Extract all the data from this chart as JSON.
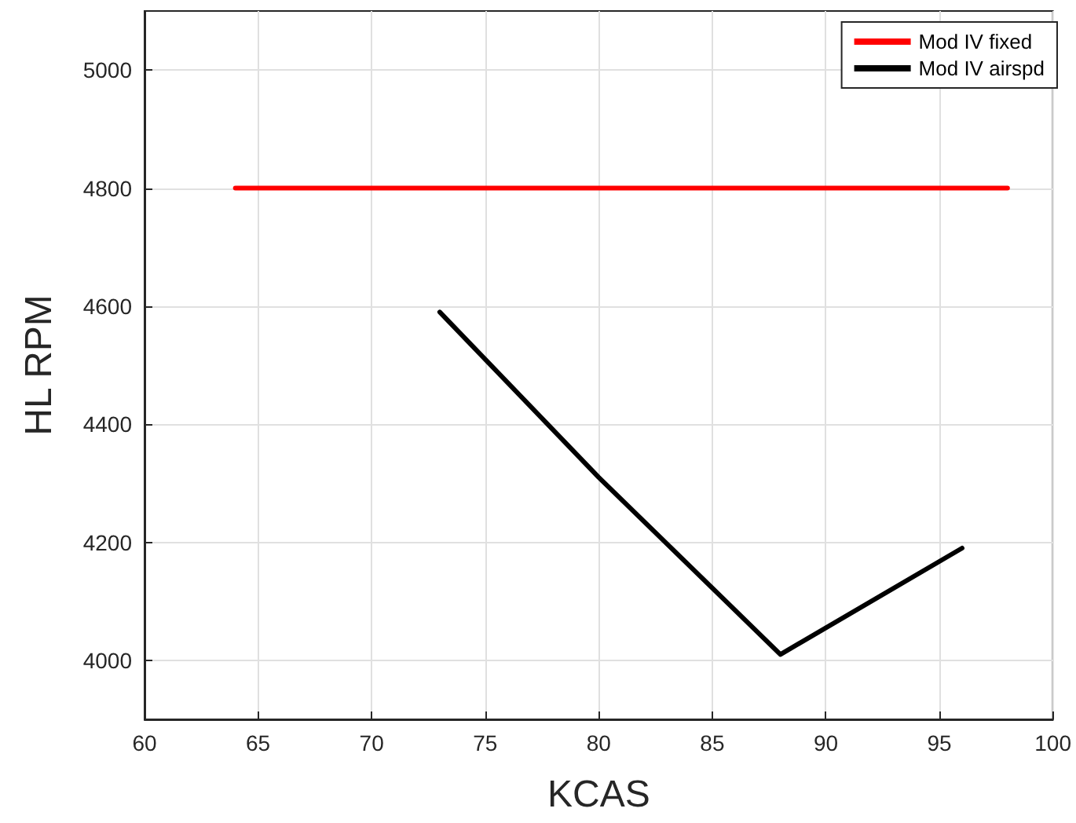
{
  "chart_data": {
    "type": "line",
    "xlabel": "KCAS",
    "ylabel": "HL RPM",
    "xlim": [
      60,
      100
    ],
    "xticks": [
      60,
      65,
      70,
      75,
      80,
      85,
      90,
      95,
      100
    ],
    "ylim": [
      3900,
      5100
    ],
    "yticks": [
      4000,
      4200,
      4400,
      4600,
      4800,
      5000
    ],
    "grid": true,
    "legend": "top right",
    "marker": "none",
    "line_style": "solid",
    "series": [
      {
        "name": "Mod IV fixed",
        "color": "#ff0000",
        "x": [
          64,
          98
        ],
        "values": [
          4800,
          4800
        ]
      },
      {
        "name": "Mod IV airspd",
        "color": "#000000",
        "x": [
          73,
          80,
          88,
          96
        ],
        "values": [
          4590,
          4310,
          4010,
          4190
        ]
      }
    ]
  }
}
